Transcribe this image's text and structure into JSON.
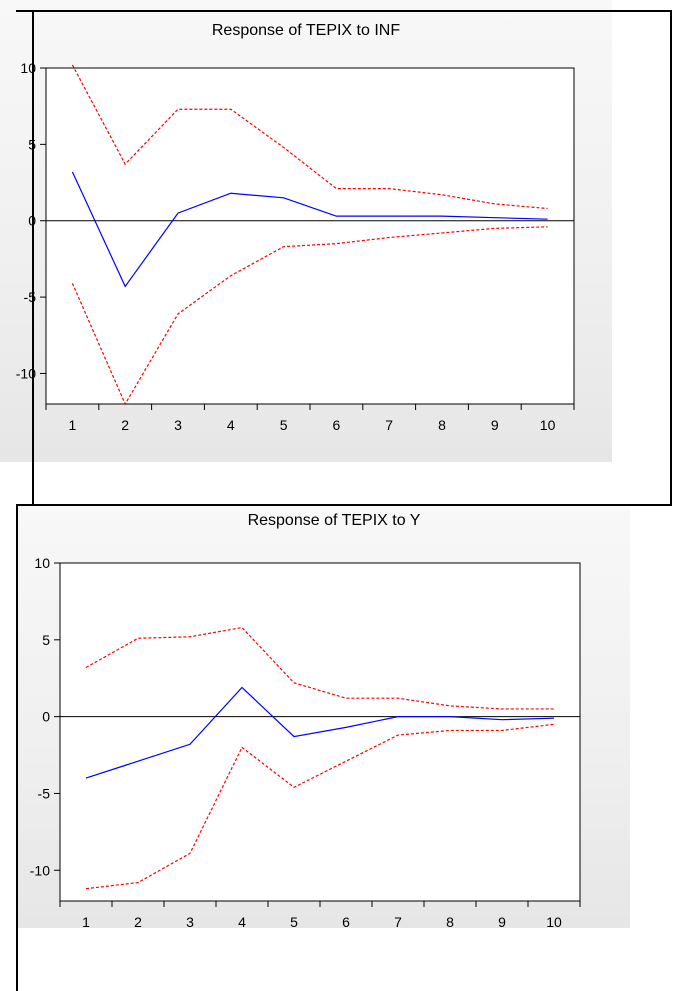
{
  "chart_data": [
    {
      "type": "line",
      "title": "Response of TEPIX to INF",
      "xlabel": "",
      "ylabel": "",
      "x": [
        1,
        2,
        3,
        4,
        5,
        6,
        7,
        8,
        9,
        10
      ],
      "xlim": [
        0.5,
        10.5
      ],
      "ylim": [
        -12,
        10
      ],
      "yticks": [
        10,
        5,
        0,
        -5,
        -10
      ],
      "series": [
        {
          "color": "#0000ff",
          "style": "solid",
          "values": [
            3.2,
            -4.3,
            0.5,
            1.8,
            1.5,
            0.3,
            0.3,
            0.3,
            0.2,
            0.1
          ]
        },
        {
          "color": "#ff0000",
          "style": "dashed",
          "values": [
            10.2,
            3.7,
            7.3,
            7.3,
            4.8,
            2.1,
            2.1,
            1.7,
            1.1,
            0.8
          ]
        },
        {
          "color": "#ff0000",
          "style": "dashed",
          "values": [
            -4.1,
            -12.0,
            -6.1,
            -3.6,
            -1.7,
            -1.5,
            -1.1,
            -0.8,
            -0.5,
            -0.4
          ]
        }
      ],
      "grid": false,
      "zero_line": true
    },
    {
      "type": "line",
      "title": "Response of TEPIX to Y",
      "xlabel": "",
      "ylabel": "",
      "x": [
        1,
        2,
        3,
        4,
        5,
        6,
        7,
        8,
        9,
        10
      ],
      "xlim": [
        0.5,
        10.5
      ],
      "ylim": [
        -12,
        10
      ],
      "yticks": [
        10,
        5,
        0,
        -5,
        -10
      ],
      "series": [
        {
          "color": "#0000ff",
          "style": "solid",
          "values": [
            -4.0,
            -2.9,
            -1.8,
            1.9,
            -1.3,
            -0.7,
            0.0,
            0.0,
            -0.2,
            -0.1
          ]
        },
        {
          "color": "#ff0000",
          "style": "dashed",
          "values": [
            3.2,
            5.1,
            5.2,
            5.8,
            2.2,
            1.2,
            1.2,
            0.7,
            0.5,
            0.5
          ]
        },
        {
          "color": "#ff0000",
          "style": "dashed",
          "values": [
            -11.2,
            -10.8,
            -8.9,
            -2.0,
            -4.6,
            -2.9,
            -1.2,
            -0.9,
            -0.9,
            -0.5
          ]
        }
      ],
      "grid": false,
      "zero_line": true
    }
  ]
}
